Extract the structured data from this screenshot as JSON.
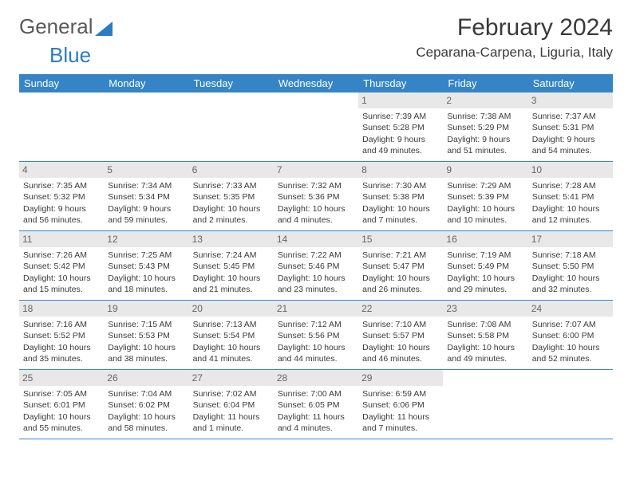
{
  "logo": {
    "text1": "General",
    "text2": "Blue"
  },
  "title": "February 2024",
  "location": "Ceparana-Carpena, Liguria, Italy",
  "colors": {
    "header_bg": "#3585c6",
    "header_text": "#ffffff",
    "daynum_bg": "#e8e8e8",
    "border": "#3585c6",
    "logo_blue": "#2b7cc0",
    "body_text": "#3a3a3a"
  },
  "typography": {
    "title_fontsize": 30,
    "location_fontsize": 17,
    "dow_fontsize": 13,
    "cell_fontsize": 10.5,
    "daynum_fontsize": 12
  },
  "dow": [
    "Sunday",
    "Monday",
    "Tuesday",
    "Wednesday",
    "Thursday",
    "Friday",
    "Saturday"
  ],
  "weeks": [
    [
      {
        "n": "",
        "sr": "",
        "ss": "",
        "dl": ""
      },
      {
        "n": "",
        "sr": "",
        "ss": "",
        "dl": ""
      },
      {
        "n": "",
        "sr": "",
        "ss": "",
        "dl": ""
      },
      {
        "n": "",
        "sr": "",
        "ss": "",
        "dl": ""
      },
      {
        "n": "1",
        "sr": "Sunrise: 7:39 AM",
        "ss": "Sunset: 5:28 PM",
        "dl": "Daylight: 9 hours and 49 minutes."
      },
      {
        "n": "2",
        "sr": "Sunrise: 7:38 AM",
        "ss": "Sunset: 5:29 PM",
        "dl": "Daylight: 9 hours and 51 minutes."
      },
      {
        "n": "3",
        "sr": "Sunrise: 7:37 AM",
        "ss": "Sunset: 5:31 PM",
        "dl": "Daylight: 9 hours and 54 minutes."
      }
    ],
    [
      {
        "n": "4",
        "sr": "Sunrise: 7:35 AM",
        "ss": "Sunset: 5:32 PM",
        "dl": "Daylight: 9 hours and 56 minutes."
      },
      {
        "n": "5",
        "sr": "Sunrise: 7:34 AM",
        "ss": "Sunset: 5:34 PM",
        "dl": "Daylight: 9 hours and 59 minutes."
      },
      {
        "n": "6",
        "sr": "Sunrise: 7:33 AM",
        "ss": "Sunset: 5:35 PM",
        "dl": "Daylight: 10 hours and 2 minutes."
      },
      {
        "n": "7",
        "sr": "Sunrise: 7:32 AM",
        "ss": "Sunset: 5:36 PM",
        "dl": "Daylight: 10 hours and 4 minutes."
      },
      {
        "n": "8",
        "sr": "Sunrise: 7:30 AM",
        "ss": "Sunset: 5:38 PM",
        "dl": "Daylight: 10 hours and 7 minutes."
      },
      {
        "n": "9",
        "sr": "Sunrise: 7:29 AM",
        "ss": "Sunset: 5:39 PM",
        "dl": "Daylight: 10 hours and 10 minutes."
      },
      {
        "n": "10",
        "sr": "Sunrise: 7:28 AM",
        "ss": "Sunset: 5:41 PM",
        "dl": "Daylight: 10 hours and 12 minutes."
      }
    ],
    [
      {
        "n": "11",
        "sr": "Sunrise: 7:26 AM",
        "ss": "Sunset: 5:42 PM",
        "dl": "Daylight: 10 hours and 15 minutes."
      },
      {
        "n": "12",
        "sr": "Sunrise: 7:25 AM",
        "ss": "Sunset: 5:43 PM",
        "dl": "Daylight: 10 hours and 18 minutes."
      },
      {
        "n": "13",
        "sr": "Sunrise: 7:24 AM",
        "ss": "Sunset: 5:45 PM",
        "dl": "Daylight: 10 hours and 21 minutes."
      },
      {
        "n": "14",
        "sr": "Sunrise: 7:22 AM",
        "ss": "Sunset: 5:46 PM",
        "dl": "Daylight: 10 hours and 23 minutes."
      },
      {
        "n": "15",
        "sr": "Sunrise: 7:21 AM",
        "ss": "Sunset: 5:47 PM",
        "dl": "Daylight: 10 hours and 26 minutes."
      },
      {
        "n": "16",
        "sr": "Sunrise: 7:19 AM",
        "ss": "Sunset: 5:49 PM",
        "dl": "Daylight: 10 hours and 29 minutes."
      },
      {
        "n": "17",
        "sr": "Sunrise: 7:18 AM",
        "ss": "Sunset: 5:50 PM",
        "dl": "Daylight: 10 hours and 32 minutes."
      }
    ],
    [
      {
        "n": "18",
        "sr": "Sunrise: 7:16 AM",
        "ss": "Sunset: 5:52 PM",
        "dl": "Daylight: 10 hours and 35 minutes."
      },
      {
        "n": "19",
        "sr": "Sunrise: 7:15 AM",
        "ss": "Sunset: 5:53 PM",
        "dl": "Daylight: 10 hours and 38 minutes."
      },
      {
        "n": "20",
        "sr": "Sunrise: 7:13 AM",
        "ss": "Sunset: 5:54 PM",
        "dl": "Daylight: 10 hours and 41 minutes."
      },
      {
        "n": "21",
        "sr": "Sunrise: 7:12 AM",
        "ss": "Sunset: 5:56 PM",
        "dl": "Daylight: 10 hours and 44 minutes."
      },
      {
        "n": "22",
        "sr": "Sunrise: 7:10 AM",
        "ss": "Sunset: 5:57 PM",
        "dl": "Daylight: 10 hours and 46 minutes."
      },
      {
        "n": "23",
        "sr": "Sunrise: 7:08 AM",
        "ss": "Sunset: 5:58 PM",
        "dl": "Daylight: 10 hours and 49 minutes."
      },
      {
        "n": "24",
        "sr": "Sunrise: 7:07 AM",
        "ss": "Sunset: 6:00 PM",
        "dl": "Daylight: 10 hours and 52 minutes."
      }
    ],
    [
      {
        "n": "25",
        "sr": "Sunrise: 7:05 AM",
        "ss": "Sunset: 6:01 PM",
        "dl": "Daylight: 10 hours and 55 minutes."
      },
      {
        "n": "26",
        "sr": "Sunrise: 7:04 AM",
        "ss": "Sunset: 6:02 PM",
        "dl": "Daylight: 10 hours and 58 minutes."
      },
      {
        "n": "27",
        "sr": "Sunrise: 7:02 AM",
        "ss": "Sunset: 6:04 PM",
        "dl": "Daylight: 11 hours and 1 minute."
      },
      {
        "n": "28",
        "sr": "Sunrise: 7:00 AM",
        "ss": "Sunset: 6:05 PM",
        "dl": "Daylight: 11 hours and 4 minutes."
      },
      {
        "n": "29",
        "sr": "Sunrise: 6:59 AM",
        "ss": "Sunset: 6:06 PM",
        "dl": "Daylight: 11 hours and 7 minutes."
      },
      {
        "n": "",
        "sr": "",
        "ss": "",
        "dl": ""
      },
      {
        "n": "",
        "sr": "",
        "ss": "",
        "dl": ""
      }
    ]
  ]
}
